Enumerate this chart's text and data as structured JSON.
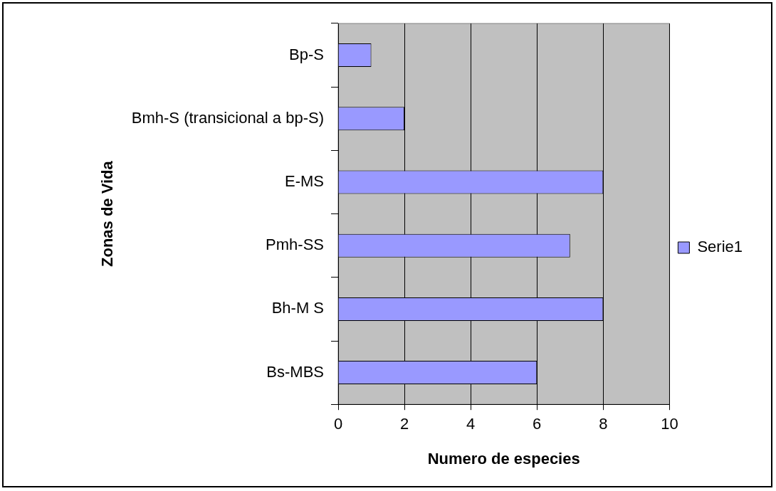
{
  "chart_data": {
    "type": "bar",
    "orientation": "horizontal",
    "xlabel": "Numero de especies",
    "ylabel": "Zonas de Vida",
    "categories": [
      "Bp-S",
      "Bmh-S (transicional a bp-S)",
      "E-MS",
      "Pmh-SS",
      "Bh-M S",
      "Bs-MBS"
    ],
    "series": [
      {
        "name": "Serie1",
        "color": "#9999ff",
        "values": [
          1,
          2,
          8,
          7,
          8,
          6
        ]
      }
    ],
    "xlim": [
      0,
      10
    ],
    "xticks": [
      0,
      2,
      4,
      6,
      8,
      10
    ],
    "grid": "x",
    "legend": "right"
  }
}
